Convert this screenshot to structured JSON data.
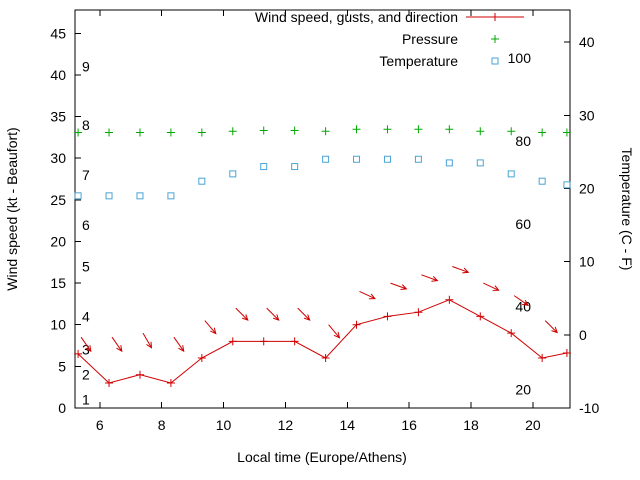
{
  "chart_data": {
    "type": "line",
    "title": "",
    "xlabel": "Local time (Europe/Athens)",
    "ylabel_left": "Wind speed (kt - Beaufort)",
    "ylabel_right": "Temperature (C - F)",
    "xlim": [
      5.2,
      21.2
    ],
    "x_ticks": [
      6,
      8,
      10,
      12,
      14,
      16,
      18,
      20
    ],
    "ylim_left": [
      0,
      47.8
    ],
    "y_left_ticks": [
      0,
      5,
      10,
      15,
      20,
      25,
      30,
      35,
      40,
      45
    ],
    "ylim_right": [
      -10,
      44.4
    ],
    "y_right_ticks": [
      -10,
      0,
      10,
      20,
      30,
      40
    ],
    "beaufort_scale": {
      "labels": [
        "1",
        "2",
        "3",
        "4",
        "5",
        "6",
        "7",
        "8",
        "9"
      ],
      "kt_positions": [
        1,
        4,
        7,
        11,
        17,
        22,
        28,
        34,
        41
      ]
    },
    "inner_right_axis": {
      "ticks": [
        20,
        40,
        60,
        80,
        100
      ],
      "kt_at_20": 2.2,
      "kt_at_100": 42.05
    },
    "x_hours": [
      5.3,
      6.3,
      7.3,
      8.3,
      9.3,
      10.3,
      11.3,
      12.3,
      13.3,
      14.3,
      15.3,
      16.3,
      17.3,
      18.3,
      19.3,
      20.3,
      21.1
    ],
    "series": [
      {
        "name": "Wind speed, gusts, and direction",
        "color": "#d00000",
        "marker": "plus",
        "axis": "left_kt",
        "values": [
          6.5,
          3,
          4,
          3,
          6,
          8,
          8,
          8,
          6,
          10,
          11,
          11.5,
          13,
          11,
          9,
          6,
          6.6
        ]
      },
      {
        "name": "Wind gusts and direction arrows",
        "color": "#d00000",
        "marker": "arrow",
        "axis": "left_kt",
        "gust_values": [
          8.5,
          8.5,
          9,
          8.5,
          10.5,
          12,
          12,
          12,
          10,
          14,
          15,
          16,
          17,
          15,
          13.5,
          10.5
        ],
        "direction_deg_below_horizontal": [
          55,
          55,
          60,
          55,
          50,
          45,
          45,
          45,
          50,
          25,
          20,
          20,
          20,
          25,
          35,
          45
        ]
      },
      {
        "name": "Pressure",
        "color": "#00a800",
        "marker": "plus",
        "axis": "inner_right",
        "values": [
          82,
          82,
          82,
          82,
          82,
          82.3,
          82.5,
          82.5,
          82.3,
          82.8,
          82.8,
          82.8,
          82.8,
          82.3,
          82.3,
          82,
          82
        ]
      },
      {
        "name": "Temperature",
        "color": "#4aa3d5",
        "marker": "square",
        "axis": "right_c",
        "values": [
          19,
          19,
          19,
          19,
          21,
          22,
          23,
          23,
          24,
          24,
          24,
          24,
          23.5,
          23.5,
          22,
          21,
          20.5
        ]
      }
    ],
    "legend": {
      "position": "top-right-inside",
      "entries": [
        "Wind speed, gusts, and direction",
        "Pressure",
        "Temperature"
      ]
    },
    "grid": false
  },
  "colors": {
    "wind": "#d00000",
    "pressure": "#00a800",
    "temperature": "#4aa3d5",
    "axis": "#000000",
    "background": "#ffffff"
  }
}
